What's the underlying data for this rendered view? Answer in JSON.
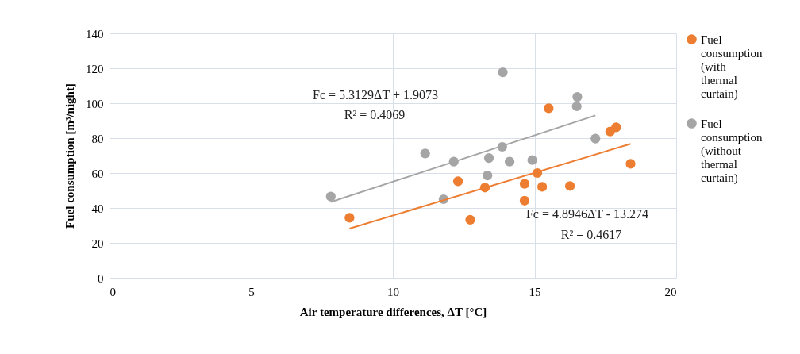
{
  "chart_data": {
    "type": "scatter",
    "xlabel": "Air temperature differences, ΔT [°C]",
    "ylabel": "Fuel consumption  [m³/night]",
    "xlim": [
      0,
      20
    ],
    "xticks": [
      0,
      5,
      10,
      15,
      20
    ],
    "ylim": [
      0,
      140
    ],
    "yticks": [
      0,
      20,
      40,
      60,
      80,
      100,
      120,
      140
    ],
    "grid": true,
    "legend": "right",
    "marker": "circle",
    "series": [
      {
        "name": "Fuel consumption (with thermal curtain)",
        "color": "#ed7d31",
        "x": [
          8.47,
          12.3,
          12.73,
          13.25,
          14.65,
          14.65,
          15.1,
          15.5,
          15.27,
          16.25,
          17.67,
          17.88,
          18.39
        ],
        "values": [
          34.4,
          55.3,
          33.2,
          51.7,
          53.8,
          44.2,
          60,
          97.1,
          52.1,
          52.6,
          83.8,
          86.2,
          65.3
        ]
      },
      {
        "name": "Fuel consumption (without thermal curtain)",
        "color": "#a5a5a5",
        "x": [
          7.81,
          11.14,
          12.15,
          11.79,
          13.34,
          13.39,
          13.86,
          13.88,
          14.12,
          14.92,
          16.51,
          16.49,
          17.15
        ],
        "values": [
          46.5,
          71.2,
          66.5,
          45,
          58.6,
          68.6,
          75,
          117.7,
          66.5,
          67.4,
          103.6,
          98.2,
          79.7
        ]
      },
      {
        "type": "line",
        "marker": "none",
        "color": "#ed7d31",
        "x": [
          8.47,
          18.39
        ],
        "values": [
          28.2,
          76.7
        ]
      },
      {
        "type": "line",
        "marker": "none",
        "color": "#a5a5a5",
        "x": [
          7.81,
          17.15
        ],
        "values": [
          43.4,
          93.0
        ]
      }
    ],
    "annotations": [
      "Fc = 5.3129ΔT + 1.9073",
      "R² = 0.4069",
      "Fc = 4.8946ΔT - 13.274",
      "R² = 0.4617"
    ]
  }
}
